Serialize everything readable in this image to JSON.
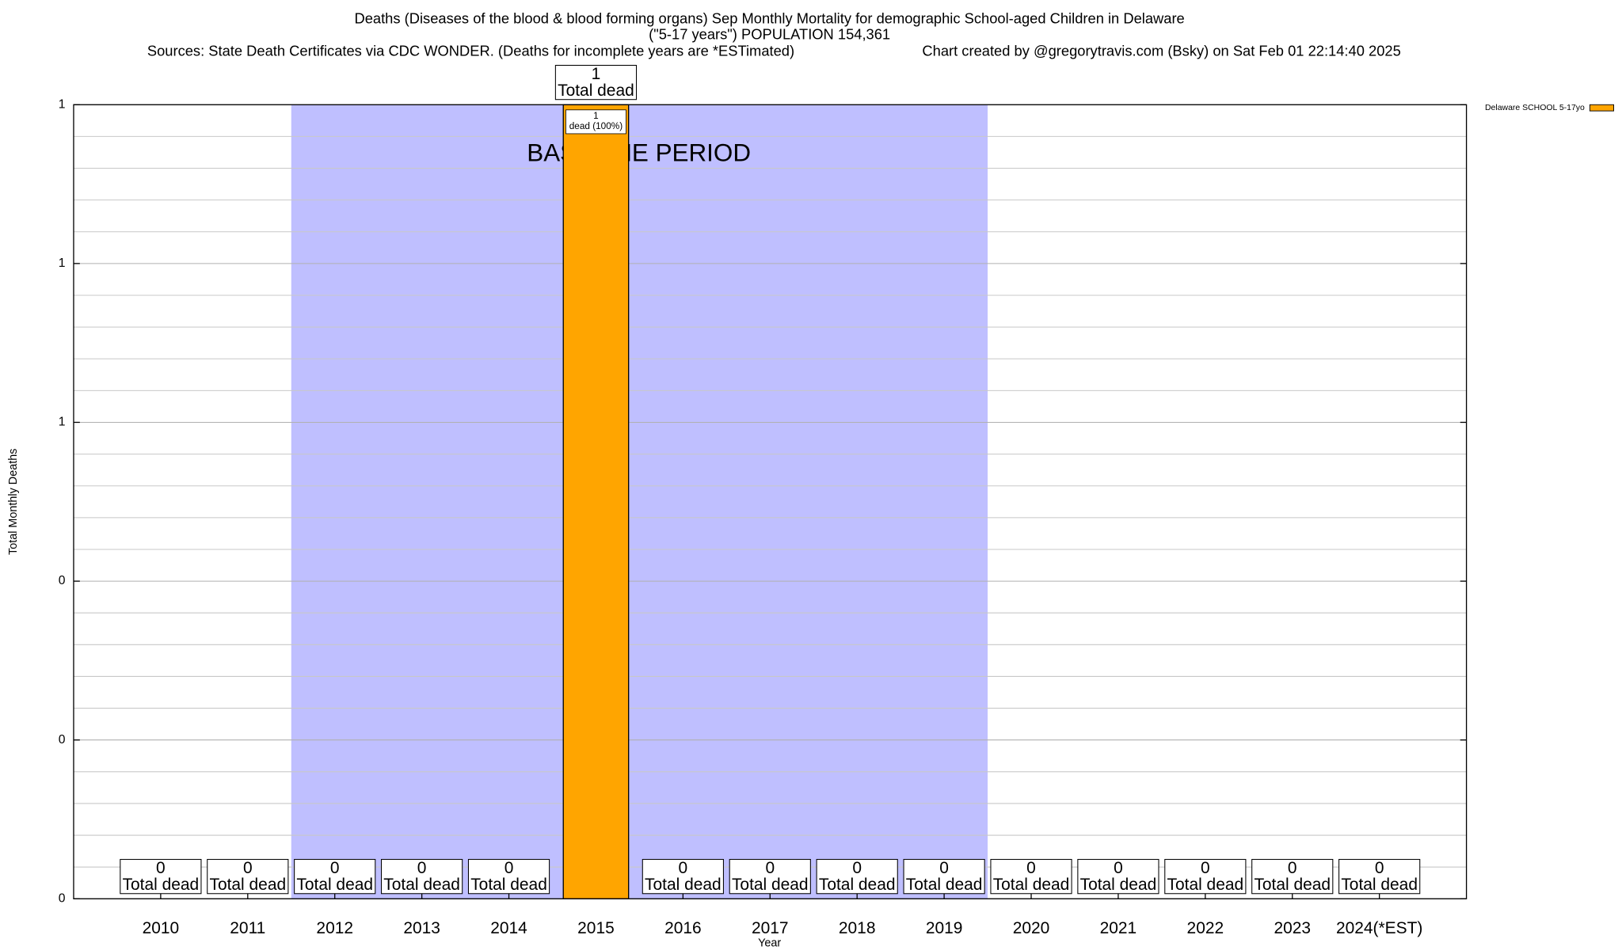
{
  "chart_data": {
    "type": "bar",
    "title": "Deaths (Diseases of the blood & blood forming organs) Sep Monthly Mortality for demographic School-aged Children in Delaware",
    "subtitle": "(\"5-17 years\") POPULATION 154,361",
    "source": "Sources: State Death Certificates via CDC WONDER. (Deaths for incomplete years are *ESTimated)",
    "credit": "Chart created by @gregorytravis.com (Bsky) on Sat Feb 01 22:14:40 2025",
    "x_label": "Year",
    "y_label": "Total Monthly Deaths",
    "categories": [
      "2010",
      "2011",
      "2012",
      "2013",
      "2014",
      "2015",
      "2016",
      "2017",
      "2018",
      "2019",
      "2020",
      "2021",
      "2022",
      "2023",
      "2024(*EST)"
    ],
    "series": [
      {
        "name": "Delaware SCHOOL 5-17yo",
        "color": "#ffa500",
        "values": [
          0,
          0,
          0,
          0,
          0,
          1,
          0,
          0,
          0,
          0,
          0,
          0,
          0,
          0,
          0
        ]
      }
    ],
    "total_label": "Total dead",
    "segment_label": "dead (100%)",
    "baseline": {
      "label": "BASELINE PERIOD",
      "from": "2012",
      "to": "2019",
      "color": "#bfbfff"
    },
    "ylim": [
      0,
      1
    ],
    "yticks": [
      0,
      {
        "value": 0.2,
        "label": "0"
      },
      {
        "value": 0.4,
        "label": "0"
      },
      {
        "value": 0.6,
        "label": "1"
      },
      {
        "value": 0.8,
        "label": "1"
      },
      1
    ],
    "y_minor_ticks": [
      0.04,
      0.08,
      0.12,
      0.16,
      0.24,
      0.28,
      0.32,
      0.36,
      0.44,
      0.48,
      0.52,
      0.56,
      0.64,
      0.68,
      0.72,
      0.76,
      0.84,
      0.88,
      0.92,
      0.96
    ],
    "grid": true,
    "legend": "top-right"
  }
}
